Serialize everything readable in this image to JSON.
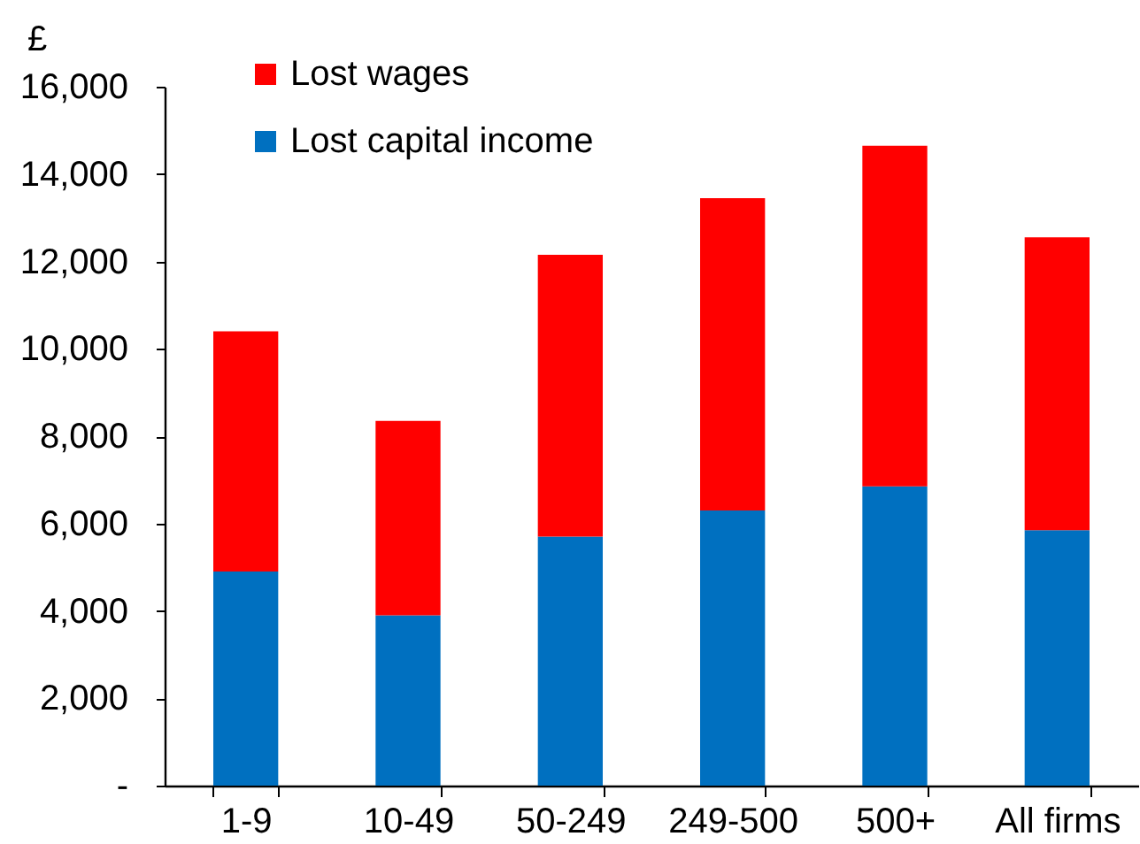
{
  "chart_data": {
    "type": "bar",
    "ylabel": "£",
    "categories": [
      "1-9",
      "10-49",
      "50-249",
      "249-500",
      "500+",
      "All firms"
    ],
    "series": [
      {
        "name": "Lost capital income",
        "color": "#0070c0",
        "values": [
          4900,
          3900,
          5700,
          6300,
          6850,
          5850
        ]
      },
      {
        "name": "Lost wages",
        "color": "#ff0000",
        "values": [
          5500,
          4450,
          6450,
          7150,
          7800,
          6700
        ]
      }
    ],
    "stacked": true,
    "ylim": [
      0,
      16000
    ],
    "yticks": [
      {
        "value": 0,
        "label": "-"
      },
      {
        "value": 2000,
        "label": "2,000"
      },
      {
        "value": 4000,
        "label": "4,000"
      },
      {
        "value": 6000,
        "label": "6,000"
      },
      {
        "value": 8000,
        "label": "8,000"
      },
      {
        "value": 10000,
        "label": "10,000"
      },
      {
        "value": 12000,
        "label": "12,000"
      },
      {
        "value": 14000,
        "label": "14,000"
      },
      {
        "value": 16000,
        "label": "16,000"
      }
    ],
    "legend": "top left"
  }
}
